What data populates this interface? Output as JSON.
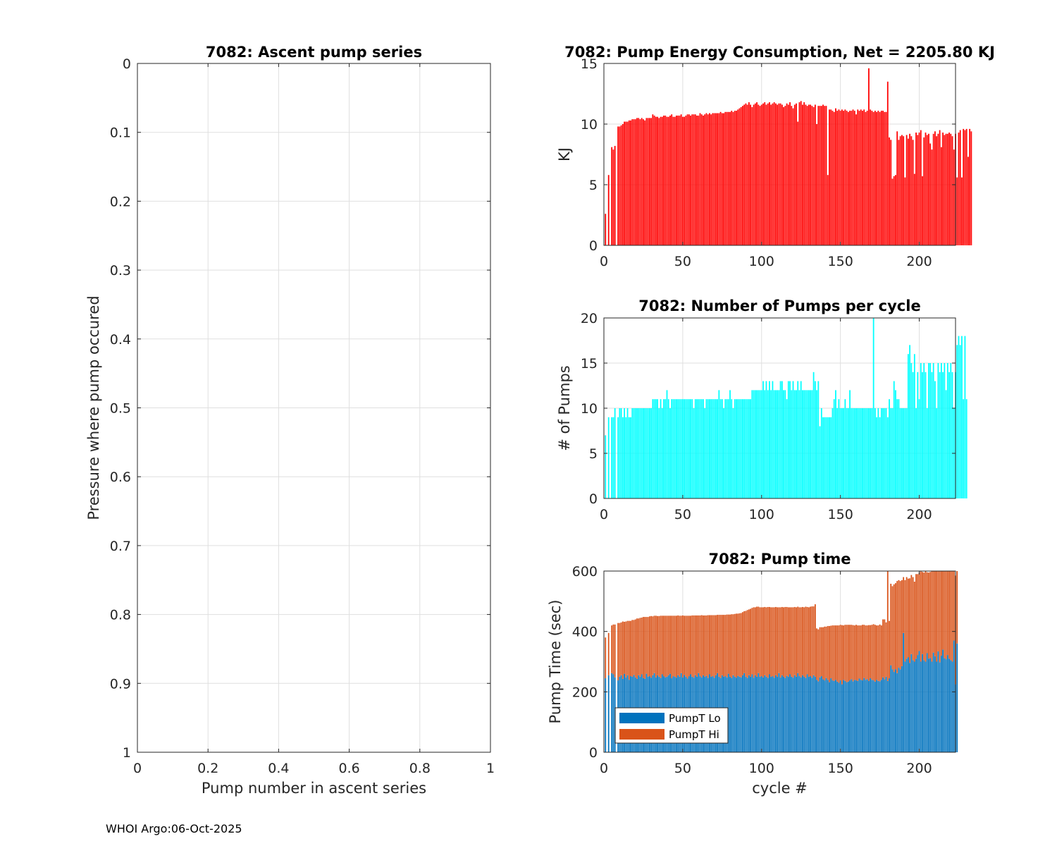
{
  "footer": "WHOI Argo:06-Oct-2025",
  "chart_data": [
    {
      "type": "line",
      "title": "7082: Ascent pump series",
      "xlabel": "Pump number in ascent series",
      "ylabel": "Pressure where pump occured",
      "xlim": [
        0,
        1
      ],
      "ylim": [
        0,
        1
      ],
      "y_reversed": true,
      "xticks": [
        "0",
        "0.2",
        "0.4",
        "0.6",
        "0.8",
        "1"
      ],
      "yticks": [
        "0",
        "0.1",
        "0.2",
        "0.3",
        "0.4",
        "0.5",
        "0.6",
        "0.7",
        "0.8",
        "0.9",
        "1"
      ],
      "grid": true,
      "series": []
    },
    {
      "type": "bar",
      "title": "7082: Pump Energy Consumption,  Net = 2205.80 KJ",
      "xlabel": "",
      "ylabel": "KJ",
      "xlim": [
        0,
        223
      ],
      "ylim": [
        0,
        15
      ],
      "xticks": [
        "0",
        "50",
        "100",
        "150",
        "200"
      ],
      "yticks": [
        "0",
        "5",
        "10",
        "15"
      ],
      "grid": true,
      "color": "#ff0000",
      "values": [
        2.6,
        0,
        5.8,
        0,
        8.1,
        7.9,
        8.2,
        0,
        9.8,
        9.8,
        9.9,
        10.0,
        10.2,
        10.2,
        10.2,
        10.3,
        10.3,
        10.4,
        10.4,
        10.4,
        10.5,
        10.5,
        10.4,
        10.5,
        10.4,
        10.3,
        10.5,
        10.5,
        10.5,
        10.5,
        10.8,
        10.7,
        10.6,
        10.6,
        10.5,
        10.6,
        10.6,
        10.7,
        10.7,
        10.6,
        10.6,
        10.7,
        10.8,
        10.6,
        10.6,
        10.7,
        10.7,
        10.7,
        10.8,
        10.6,
        10.6,
        10.7,
        10.8,
        10.8,
        10.7,
        10.8,
        10.8,
        10.8,
        10.7,
        10.7,
        10.9,
        10.8,
        10.7,
        10.8,
        10.9,
        10.8,
        10.9,
        10.8,
        10.9,
        10.9,
        10.9,
        10.9,
        10.9,
        11.0,
        10.9,
        10.9,
        11.0,
        11.0,
        11.0,
        11.0,
        11.1,
        11.0,
        11.1,
        11.1,
        11.2,
        11.3,
        11.4,
        11.5,
        11.6,
        11.7,
        11.6,
        11.8,
        11.6,
        11.4,
        11.6,
        11.7,
        11.8,
        11.6,
        11.5,
        11.6,
        11.7,
        11.8,
        11.6,
        11.7,
        11.8,
        11.6,
        11.7,
        11.8,
        11.7,
        11.6,
        11.7,
        11.7,
        11.6,
        11.4,
        11.5,
        11.7,
        11.6,
        11.8,
        11.5,
        11.3,
        11.6,
        11.7,
        10.2,
        11.8,
        11.9,
        11.6,
        11.8,
        11.6,
        11.5,
        11.6,
        11.6,
        11.5,
        11.4,
        11.6,
        10.0,
        11.5,
        11.5,
        11.5,
        11.6,
        11.5,
        11.5,
        5.8,
        11.2,
        11.2,
        11.1,
        11.0,
        11.3,
        11.1,
        11.2,
        11.1,
        11.2,
        11.1,
        11.2,
        11.1,
        11.0,
        11.1,
        11.1,
        11.2,
        11.1,
        10.8,
        11.2,
        11.1,
        11.2,
        11.1,
        11.2,
        11.0,
        11.1,
        14.6,
        11.2,
        11.1,
        11.0,
        11.1,
        11.0,
        11.1,
        11.0,
        11.1,
        11.1,
        11.0,
        11.0,
        13.5,
        8.9,
        8.7,
        5.5,
        5.7,
        5.8,
        9.4,
        8.7,
        9.0,
        9.1,
        9.0,
        5.6,
        9.1,
        8.8,
        9.2,
        9.0,
        8.7,
        5.9,
        9.3,
        9.1,
        9.3,
        9.5,
        5.7,
        8.9,
        9.3,
        9.1,
        9.2,
        8.4,
        7.9,
        9.2,
        9.4,
        9.0,
        9.2,
        9.5,
        8.1,
        9.3,
        9.1,
        9.2,
        9.2,
        9.3,
        9.2,
        9.0,
        7.9,
        9.2,
        5.6,
        9.3,
        9.5,
        5.6,
        9.6,
        9.5,
        9.6,
        7.3,
        9.6,
        9.4
      ]
    },
    {
      "type": "bar",
      "title": "7082: Number of Pumps per cycle",
      "xlabel": "",
      "ylabel": "# of Pumps",
      "xlim": [
        0,
        223
      ],
      "ylim": [
        0,
        20
      ],
      "xticks": [
        "0",
        "50",
        "100",
        "150",
        "200"
      ],
      "yticks": [
        "0",
        "5",
        "10",
        "15",
        "20"
      ],
      "grid": true,
      "color": "#00ffff",
      "values": [
        7,
        0,
        9,
        0,
        9,
        9,
        10,
        0,
        9,
        10,
        10,
        9,
        10,
        9,
        10,
        9,
        9,
        10,
        10,
        10,
        10,
        10,
        10,
        10,
        10,
        10,
        10,
        10,
        10,
        10,
        11,
        11,
        11,
        11,
        10,
        11,
        10,
        11,
        11,
        12,
        11,
        10,
        11,
        11,
        11,
        11,
        11,
        11,
        11,
        11,
        11,
        11,
        11,
        11,
        11,
        11,
        10,
        11,
        11,
        11,
        11,
        11,
        11,
        10,
        11,
        11,
        11,
        11,
        11,
        11,
        11,
        11,
        12,
        11,
        11,
        10,
        11,
        11,
        11,
        12,
        11,
        10,
        11,
        11,
        11,
        11,
        11,
        11,
        11,
        11,
        11,
        11,
        11,
        12,
        12,
        12,
        12,
        12,
        12,
        12,
        13,
        12,
        13,
        12,
        13,
        12,
        13,
        12,
        12,
        12,
        12,
        13,
        13,
        12,
        12,
        11,
        13,
        13,
        12,
        13,
        12,
        12,
        13,
        12,
        13,
        12,
        12,
        12,
        12,
        12,
        12,
        12,
        14,
        13,
        12,
        13,
        8,
        10,
        9,
        9,
        9,
        9,
        9,
        9,
        10,
        11,
        12,
        10,
        11,
        10,
        10,
        10,
        11,
        10,
        10,
        12,
        10,
        10,
        10,
        10,
        10,
        10,
        10,
        10,
        10,
        10,
        10,
        10,
        10,
        10,
        20,
        10,
        9,
        10,
        9,
        10,
        10,
        10,
        10,
        9,
        11,
        10,
        10,
        13,
        12,
        11,
        11,
        10,
        10,
        10,
        10,
        10,
        16,
        17,
        15,
        14,
        16,
        10,
        14,
        11,
        15,
        14,
        15,
        14,
        10,
        15,
        15,
        14,
        15,
        13,
        10,
        15,
        14,
        15,
        14,
        15,
        12,
        15,
        14,
        15,
        14,
        10,
        14,
        17,
        18,
        17,
        18,
        11,
        18,
        11
      ]
    },
    {
      "type": "bar",
      "stacked": true,
      "title": "7082: Pump time",
      "xlabel": "cycle #",
      "ylabel": "Pump Time (sec)",
      "xlim": [
        0,
        223
      ],
      "ylim": [
        0,
        600
      ],
      "xticks": [
        "0",
        "50",
        "100",
        "150",
        "200"
      ],
      "yticks": [
        "0",
        "200",
        "400",
        "600"
      ],
      "grid": true,
      "legend": {
        "position": "bottom-left",
        "entries": [
          "PumpT Lo",
          "PumpT Hi"
        ]
      },
      "series": [
        {
          "name": "PumpT Lo",
          "color": "#0072bd",
          "values": [
            245,
            0,
            255,
            0,
            262,
            258,
            248,
            0,
            238,
            250,
            255,
            243,
            260,
            248,
            255,
            240,
            252,
            250,
            256,
            248,
            243,
            255,
            250,
            258,
            246,
            243,
            260,
            250,
            252,
            247,
            255,
            262,
            248,
            255,
            250,
            246,
            258,
            252,
            248,
            250,
            255,
            260,
            245,
            252,
            250,
            247,
            255,
            250,
            262,
            248,
            256,
            250,
            244,
            252,
            258,
            250,
            247,
            255,
            250,
            262,
            252,
            248,
            255,
            250,
            253,
            246,
            258,
            250,
            252,
            247,
            255,
            262,
            250,
            246,
            255,
            250,
            252,
            248,
            260,
            250,
            246,
            255,
            250,
            247,
            253,
            250,
            248,
            255,
            262,
            250,
            246,
            255,
            250,
            258,
            247,
            255,
            250,
            262,
            250,
            252,
            248,
            255,
            250,
            246,
            258,
            250,
            252,
            247,
            255,
            250,
            262,
            248,
            255,
            250,
            246,
            253,
            250,
            258,
            250,
            247,
            255,
            250,
            262,
            252,
            248,
            255,
            250,
            246,
            258,
            250,
            252,
            247,
            255,
            250,
            240,
            235,
            248,
            252,
            242,
            238,
            246,
            240,
            232,
            245,
            238,
            236,
            240,
            234,
            230,
            238,
            225,
            240,
            236,
            232,
            234,
            238,
            242,
            235,
            240,
            238,
            236,
            244,
            240,
            238,
            246,
            240,
            242,
            236,
            245,
            240,
            238,
            234,
            240,
            236,
            235,
            240,
            248,
            242,
            250,
            236,
            245,
            288,
            275,
            266,
            275,
            262,
            280,
            275,
            285,
            395,
            300,
            310,
            315,
            296,
            325,
            305,
            300,
            310,
            322,
            335,
            300,
            325,
            305,
            300,
            328,
            310,
            312,
            300,
            330,
            318,
            300,
            334,
            298,
            320,
            340,
            312,
            308,
            322,
            310,
            305,
            300,
            370,
            225,
            360
          ]
        },
        {
          "name": "PumpT Hi",
          "color": "#d95319",
          "values": [
            135,
            0,
            140,
            0,
            158,
            165,
            175,
            0,
            190,
            178,
            175,
            190,
            172,
            185,
            180,
            195,
            183,
            188,
            182,
            192,
            200,
            188,
            195,
            188,
            202,
            205,
            188,
            198,
            198,
            204,
            195,
            190,
            204,
            196,
            201,
            206,
            194,
            200,
            204,
            202,
            197,
            192,
            207,
            200,
            202,
            205,
            198,
            202,
            190,
            205,
            196,
            202,
            208,
            200,
            194,
            203,
            206,
            198,
            203,
            191,
            201,
            206,
            198,
            203,
            200,
            208,
            196,
            204,
            202,
            207,
            199,
            193,
            205,
            209,
            200,
            205,
            203,
            208,
            196,
            206,
            211,
            202,
            208,
            212,
            206,
            210,
            213,
            209,
            205,
            218,
            225,
            218,
            225,
            220,
            233,
            225,
            232,
            220,
            230,
            228,
            232,
            226,
            230,
            235,
            223,
            230,
            228,
            233,
            226,
            230,
            218,
            232,
            226,
            230,
            235,
            228,
            230,
            222,
            230,
            233,
            226,
            230,
            220,
            228,
            232,
            226,
            230,
            236,
            223,
            230,
            230,
            236,
            228,
            240,
            170,
            172,
            166,
            162,
            172,
            178,
            170,
            178,
            186,
            174,
            182,
            184,
            180,
            186,
            190,
            184,
            196,
            180,
            186,
            190,
            188,
            184,
            180,
            186,
            180,
            184,
            184,
            176,
            180,
            184,
            176,
            180,
            178,
            185,
            176,
            182,
            186,
            188,
            180,
            184,
            188,
            180,
            192,
            198,
            180,
            390,
            190,
            270,
            275,
            290,
            285,
            305,
            290,
            292,
            285,
            185,
            270,
            270,
            260,
            280,
            262,
            275,
            265,
            280,
            268,
            260,
            300,
            272,
            290,
            300,
            268,
            285,
            285,
            300,
            272,
            290,
            300,
            266,
            302,
            285,
            262,
            290,
            298,
            280,
            298,
            300,
            302,
            230,
            360,
            240
          ]
        }
      ]
    }
  ]
}
